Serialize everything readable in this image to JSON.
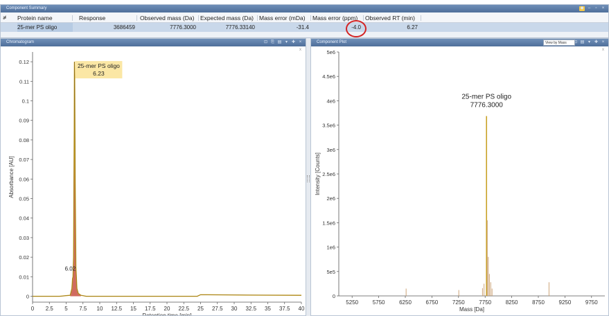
{
  "summary": {
    "title": "Component Summary",
    "columns": [
      "Protein name",
      "Response",
      "Observed mass (Da)",
      "Expected mass (Da)",
      "Mass error (mDa)",
      "Mass error (ppm)",
      "Observed RT (min)"
    ],
    "row": {
      "index": "1",
      "protein": "25-mer PS oligo",
      "response": "3686459",
      "observed_mass": "7776.3000",
      "expected_mass": "7776.33140",
      "mass_error_mda": "-31.4",
      "mass_error_ppm": "-4.0",
      "observed_rt": "6.27"
    }
  },
  "chromatogram": {
    "title": "Chromatogram",
    "corner_mark": "x"
  },
  "spectrum": {
    "title": "Component Plot",
    "view_select": "View by Mass",
    "corner_mark": "x"
  },
  "colors": {
    "trace": "#c9a227",
    "peak_fill": "#c0392b",
    "highlight": "#d42424",
    "label_box": "#fbe7a5"
  },
  "chart_data": [
    {
      "type": "line",
      "xlabel": "Retention time [min]",
      "ylabel": "Absorbance [AU]",
      "xlim": [
        0,
        40
      ],
      "ylim": [
        -0.003,
        0.125
      ],
      "x_ticks": [
        0,
        2.5,
        5,
        7.5,
        10,
        12.5,
        15,
        17.5,
        20,
        22.5,
        25,
        27.5,
        30,
        32.5,
        35,
        37.5,
        40
      ],
      "x_tick_labels": [
        "0",
        "2.5",
        "5",
        "7.5",
        "10",
        "12.5",
        "15",
        "17.5",
        "20",
        "22.5",
        "25",
        "27.5",
        "30",
        "32.5",
        "35",
        "37.5",
        "40"
      ],
      "y_ticks": [
        0,
        0.01,
        0.02,
        0.03,
        0.04,
        0.05,
        0.06,
        0.07,
        0.08,
        0.09,
        0.1,
        0.11,
        0.12
      ],
      "y_tick_labels": [
        "0",
        "0.01",
        "0.02",
        "0.03",
        "0.04",
        "0.05",
        "0.06",
        "0.07",
        "0.08",
        "0.09",
        "0.1",
        "0.11",
        "0.12"
      ],
      "x": [
        0,
        2,
        4,
        5.6,
        5.85,
        5.95,
        6.02,
        6.1,
        6.2,
        6.23,
        6.27,
        6.34,
        6.45,
        6.6,
        6.8,
        7.2,
        8,
        12,
        20,
        24.5,
        25,
        26,
        32,
        40
      ],
      "y": [
        0.0,
        0.0,
        0.0,
        0.0005,
        0.004,
        0.009,
        0.01,
        0.02,
        0.085,
        0.12,
        0.112,
        0.06,
        0.015,
        0.004,
        0.0015,
        0.0005,
        0.0,
        0.0,
        0.0,
        0.0,
        0.0008,
        0.0008,
        0.0006,
        0.0005
      ],
      "annotations": [
        {
          "label": "25-mer PS oligo",
          "value": "6.23",
          "x": 6.23,
          "y": 0.12
        },
        {
          "label": "6.02",
          "x": 6.02,
          "y": 0.01
        }
      ]
    },
    {
      "type": "bar",
      "xlabel": "Mass [Da]",
      "ylabel": "Intensity [Counts]",
      "xlim": [
        5000,
        10000
      ],
      "ylim": [
        0,
        5000000
      ],
      "x_ticks": [
        5250,
        5750,
        6250,
        6750,
        7250,
        7750,
        8250,
        8750,
        9250,
        9750
      ],
      "x_tick_labels": [
        "5250",
        "5750",
        "6250",
        "6750",
        "7250",
        "7750",
        "8250",
        "8750",
        "9250",
        "9750"
      ],
      "y_ticks": [
        0,
        500000,
        1000000,
        1500000,
        2000000,
        2500000,
        3000000,
        3500000,
        4000000,
        4500000,
        5000000
      ],
      "y_tick_labels": [
        "0",
        "5e5",
        "1e6",
        "1.5e6",
        "2e6",
        "2.5e6",
        "3e6",
        "3.5e6",
        "4e6",
        "4.5e6",
        "5e6"
      ],
      "x": [
        6265,
        7255,
        7700,
        7730,
        7776.3,
        7790,
        7810,
        7830,
        7855,
        7880,
        8950
      ],
      "values": [
        150000,
        120000,
        160000,
        250000,
        3686459,
        1550000,
        800000,
        450000,
        280000,
        150000,
        280000
      ],
      "annotations": [
        {
          "label": "25-mer PS oligo",
          "value": "7776.3000",
          "x": 7776.3,
          "y": 3686459
        }
      ]
    }
  ]
}
